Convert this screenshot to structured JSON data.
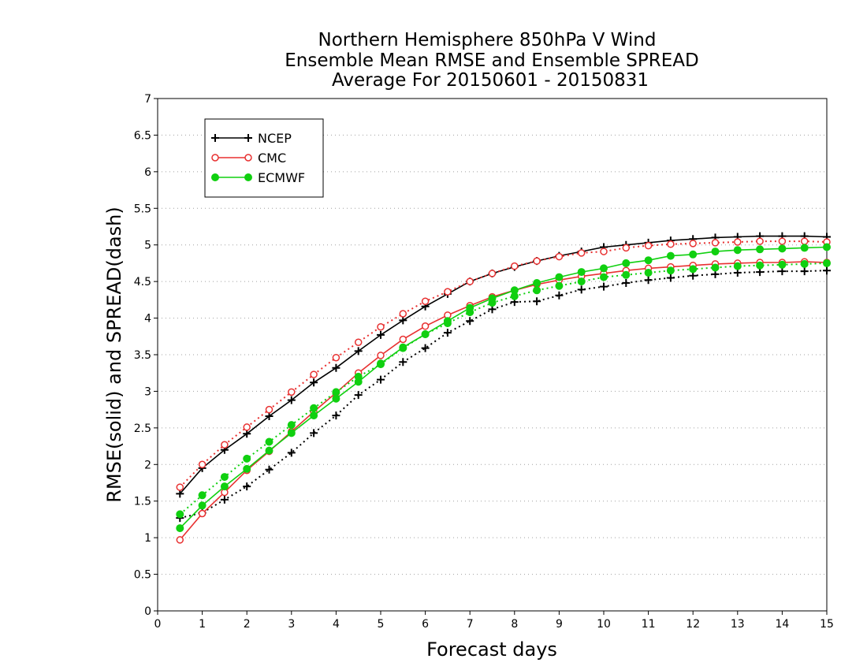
{
  "chart_data": {
    "type": "line",
    "title_lines": [
      "Northern Hemisphere 850hPa V Wind",
      "Ensemble Mean RMSE and Ensemble SPREAD",
      "Average For 20150601 - 20150831"
    ],
    "xlabel": "Forecast days",
    "ylabel": "RMSE(solid) and SPREAD(dash)",
    "xlim": [
      0,
      15
    ],
    "ylim": [
      0,
      7
    ],
    "x_ticks": [
      "0",
      "1",
      "2",
      "3",
      "4",
      "5",
      "6",
      "7",
      "8",
      "9",
      "10",
      "11",
      "12",
      "13",
      "14",
      "15"
    ],
    "y_ticks": [
      "0",
      "0.5",
      "1",
      "1.5",
      "2",
      "2.5",
      "3",
      "3.5",
      "4",
      "4.5",
      "5",
      "5.5",
      "6",
      "6.5",
      "7"
    ],
    "grid": "horizontal dotted",
    "legend_position": "top-left",
    "x": [
      0.5,
      1,
      1.5,
      2,
      2.5,
      3,
      3.5,
      4,
      4.5,
      5,
      5.5,
      6,
      6.5,
      7,
      7.5,
      8,
      8.5,
      9,
      9.5,
      10,
      10.5,
      11,
      11.5,
      12,
      12.5,
      13,
      13.5,
      14,
      14.5,
      15
    ],
    "series": [
      {
        "name": "NCEP",
        "color": "#000000",
        "marker": "plus",
        "rmse": [
          1.6,
          1.95,
          2.2,
          2.42,
          2.66,
          2.88,
          3.12,
          3.32,
          3.55,
          3.77,
          3.97,
          4.16,
          4.33,
          4.5,
          4.61,
          4.7,
          4.78,
          4.85,
          4.91,
          4.97,
          5.0,
          5.03,
          5.06,
          5.08,
          5.1,
          5.11,
          5.12,
          5.12,
          5.12,
          5.11
        ],
        "spread": [
          1.27,
          1.34,
          1.52,
          1.7,
          1.93,
          2.16,
          2.43,
          2.67,
          2.95,
          3.16,
          3.4,
          3.59,
          3.8,
          3.96,
          4.12,
          4.22,
          4.23,
          4.31,
          4.39,
          4.43,
          4.48,
          4.52,
          4.55,
          4.58,
          4.6,
          4.62,
          4.63,
          4.64,
          4.64,
          4.65
        ]
      },
      {
        "name": "CMC",
        "color": "#e83030",
        "marker": "open-circle",
        "rmse": [
          0.97,
          1.33,
          1.62,
          1.92,
          2.18,
          2.45,
          2.72,
          2.98,
          3.25,
          3.49,
          3.71,
          3.89,
          4.04,
          4.17,
          4.29,
          4.38,
          4.46,
          4.52,
          4.57,
          4.61,
          4.65,
          4.68,
          4.7,
          4.72,
          4.74,
          4.75,
          4.76,
          4.76,
          4.77,
          4.76
        ],
        "spread": [
          1.69,
          2.0,
          2.27,
          2.51,
          2.75,
          2.99,
          3.23,
          3.46,
          3.67,
          3.88,
          4.06,
          4.23,
          4.36,
          4.5,
          4.61,
          4.71,
          4.78,
          4.84,
          4.89,
          4.91,
          4.96,
          4.99,
          5.01,
          5.02,
          5.03,
          5.04,
          5.05,
          5.05,
          5.05,
          5.04
        ]
      },
      {
        "name": "ECMWF",
        "color": "#10d010",
        "marker": "filled-circle",
        "rmse": [
          1.13,
          1.44,
          1.7,
          1.94,
          2.19,
          2.43,
          2.67,
          2.9,
          3.13,
          3.38,
          3.6,
          3.78,
          3.96,
          4.14,
          4.27,
          4.38,
          4.48,
          4.56,
          4.63,
          4.68,
          4.75,
          4.79,
          4.85,
          4.87,
          4.91,
          4.93,
          4.94,
          4.95,
          4.96,
          4.97
        ],
        "spread": [
          1.32,
          1.58,
          1.83,
          2.08,
          2.31,
          2.54,
          2.77,
          2.99,
          3.2,
          3.37,
          3.59,
          3.78,
          3.93,
          4.08,
          4.21,
          4.3,
          4.38,
          4.44,
          4.5,
          4.56,
          4.59,
          4.62,
          4.65,
          4.67,
          4.69,
          4.71,
          4.72,
          4.73,
          4.74,
          4.75
        ]
      }
    ]
  }
}
